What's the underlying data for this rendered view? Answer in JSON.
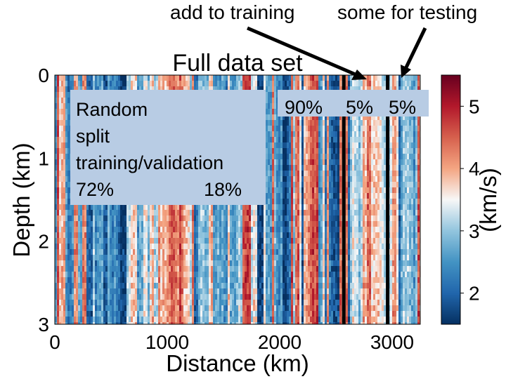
{
  "chart_data": {
    "type": "heatmap",
    "title": "Full data set",
    "xlabel": "Distance (km)",
    "ylabel": "Depth (km)",
    "xlim": [
      0,
      3250
    ],
    "ylim": [
      3,
      0
    ],
    "x_ticks": [
      0,
      1000,
      2000,
      3000
    ],
    "y_ticks": [
      0,
      1,
      2,
      3
    ],
    "colorbar": {
      "label": "(km/s)",
      "range": [
        1.5,
        5.5
      ],
      "ticks": [
        2,
        3,
        4,
        5
      ],
      "colormap": "RdBu_r",
      "colors": [
        "#053061",
        "#2166ac",
        "#4393c3",
        "#92c5de",
        "#f7f7f7",
        "#f4a582",
        "#d6604d",
        "#b2182b",
        "#67001f"
      ]
    },
    "split_lines_x": [
      2570,
      2960
    ],
    "grid": false
  },
  "annotations": {
    "training_box": {
      "line1": "Random",
      "line2": "split",
      "line3": "training/validation",
      "pct_train": "72%",
      "pct_val": "18%"
    },
    "pct_90": "90%",
    "pct_5a": "5%",
    "pct_5b": "5%",
    "add_to_training": "add to training",
    "some_for_testing": "some for testing"
  }
}
